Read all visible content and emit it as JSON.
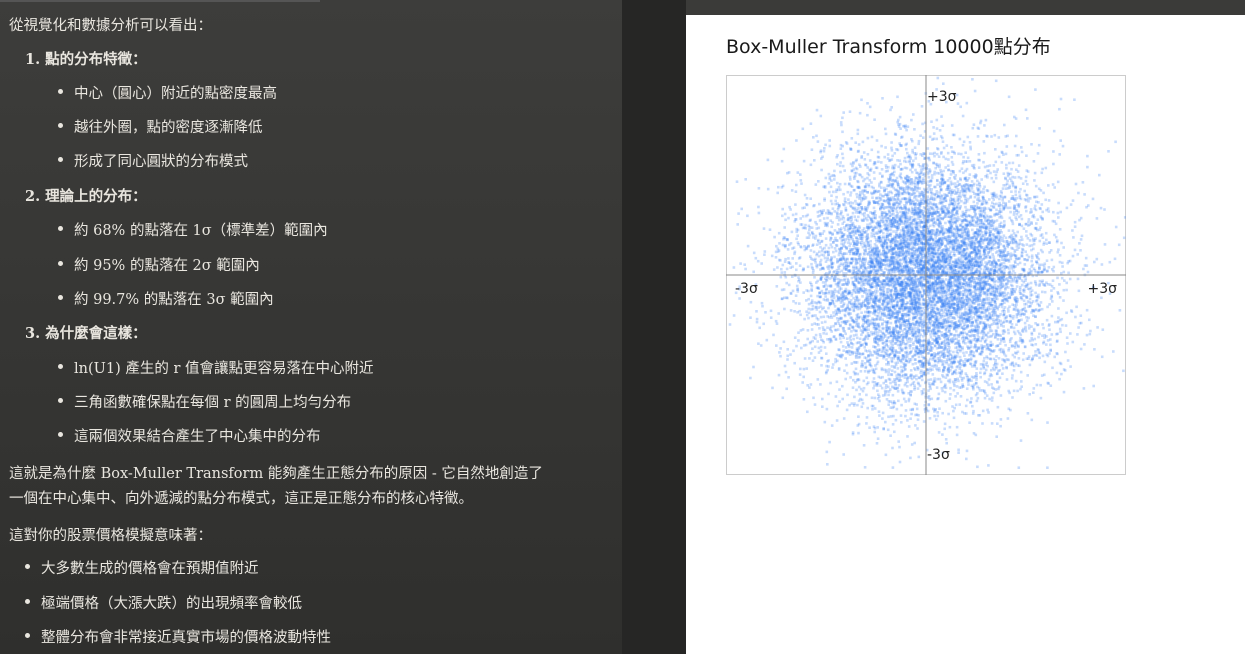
{
  "chat": {
    "intro": "從視覺化和數據分析可以看出：",
    "sections": [
      {
        "heading": "1. 點的分布特徵：",
        "bullets": [
          "中心（圓心）附近的點密度最高",
          "越往外圈，點的密度逐漸降低",
          "形成了同心圓狀的分布模式"
        ]
      },
      {
        "heading": "2. 理論上的分布：",
        "bullets": [
          "約 68% 的點落在 1σ（標準差）範圍內",
          "約 95% 的點落在 2σ 範圍內",
          "約 99.7% 的點落在 3σ 範圍內"
        ]
      },
      {
        "heading": "3. 為什麼會這樣：",
        "bullets": [
          "ln(U1) 產生的 r 值會讓點更容易落在中心附近",
          "三角函數確保點在每個 r 的圓周上均勻分布",
          "這兩個效果結合產生了中心集中的分布"
        ]
      }
    ],
    "summary_line1": "這就是為什麼 Box-Muller Transform 能夠產生正態分布的原因 - 它自然地創造了",
    "summary_line2": "一個在中心集中、向外遞減的點分布模式，這正是正態分布的核心特徵。",
    "stock_intro": "這對你的股票價格模擬意味著：",
    "stock_bullets": [
      "大多數生成的價格會在預期值附近",
      "極端價格（大漲大跌）的出現頻率會較低",
      "整體分布會非常接近真實市場的價格波動特性"
    ]
  },
  "chart_data": {
    "type": "scatter",
    "title": "Box-Muller Transform 10000點分布",
    "n_points": 10000,
    "distribution": "standard normal (Box-Muller)",
    "x_range": [
      -3,
      3
    ],
    "y_range": [
      -3,
      3
    ],
    "tick_labels": {
      "top": "+3σ",
      "bottom": "-3σ",
      "left": "-3σ",
      "right": "+3σ"
    },
    "point_color": "#3b82f6",
    "axis_color": "#888888",
    "border_color": "#cccccc"
  }
}
